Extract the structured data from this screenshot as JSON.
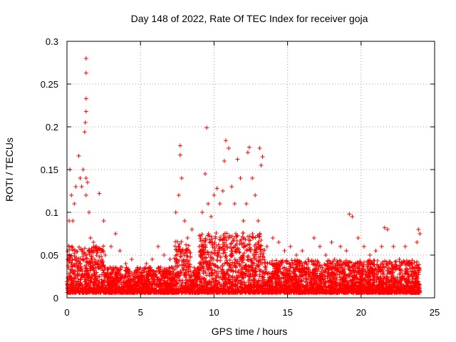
{
  "chart_data": {
    "type": "scatter",
    "title": "Day 148 of 2022, Rate Of TEC Index for receiver goja",
    "xlabel": "GPS time / hours",
    "ylabel": "ROTI / TECUs",
    "xlim": [
      0,
      25
    ],
    "ylim": [
      0,
      0.3
    ],
    "x_ticks": [
      0,
      5,
      10,
      15,
      20,
      25
    ],
    "y_ticks": [
      0,
      0.05,
      0.1,
      0.15,
      0.2,
      0.25,
      0.3
    ],
    "x_tick_labels": [
      "0",
      "5",
      "10",
      "15",
      "20",
      "25"
    ],
    "y_tick_labels": [
      "0",
      "0.05",
      "0.1",
      "0.15",
      "0.2",
      "0.25",
      "0.3"
    ],
    "grid": true,
    "marker": "plus",
    "color": "#ff0000",
    "series": [
      {
        "x": [
          0.1,
          0.15,
          0.2,
          0.3,
          0.35,
          0.4,
          0.5,
          0.6,
          0.8,
          0.9,
          1.0,
          1.1,
          1.2,
          1.25,
          1.3,
          1.3,
          1.3,
          1.3,
          1.3,
          1.3,
          1.4,
          1.5,
          1.6,
          1.8,
          2.0,
          2.2,
          2.5,
          2.6,
          3.0,
          3.3,
          3.6,
          4.0,
          4.4,
          5.0,
          5.4,
          5.8,
          6.2,
          6.6,
          7.0,
          7.4,
          7.6,
          7.7,
          7.7,
          7.8,
          8.0,
          8.2,
          8.5,
          9.0,
          9.2,
          9.4,
          9.5,
          9.6,
          9.8,
          10.0,
          10.2,
          10.4,
          10.6,
          10.7,
          10.8,
          11.0,
          11.2,
          11.4,
          11.6,
          11.8,
          12.0,
          12.2,
          12.3,
          12.4,
          12.6,
          12.8,
          13.0,
          13.1,
          13.2,
          13.3,
          13.6,
          14.0,
          14.4,
          14.8,
          15.2,
          15.6,
          16.0,
          16.4,
          16.8,
          17.2,
          17.6,
          18.0,
          18.2,
          18.6,
          19.0,
          19.2,
          19.4,
          19.8,
          20.2,
          20.6,
          21.0,
          21.4,
          21.6,
          21.8,
          22.2,
          22.6,
          23.0,
          23.4,
          23.8,
          23.9,
          24.0
        ],
        "y": [
          0.035,
          0.09,
          0.15,
          0.12,
          0.06,
          0.09,
          0.11,
          0.13,
          0.166,
          0.14,
          0.13,
          0.15,
          0.194,
          0.205,
          0.218,
          0.233,
          0.263,
          0.28,
          0.14,
          0.12,
          0.135,
          0.1,
          0.07,
          0.065,
          0.06,
          0.122,
          0.09,
          0.05,
          0.06,
          0.075,
          0.055,
          0.04,
          0.045,
          0.035,
          0.04,
          0.045,
          0.06,
          0.05,
          0.045,
          0.1,
          0.12,
          0.178,
          0.167,
          0.14,
          0.09,
          0.07,
          0.08,
          0.06,
          0.1,
          0.145,
          0.199,
          0.11,
          0.095,
          0.12,
          0.128,
          0.11,
          0.125,
          0.16,
          0.184,
          0.175,
          0.13,
          0.11,
          0.162,
          0.14,
          0.09,
          0.11,
          0.17,
          0.176,
          0.14,
          0.12,
          0.09,
          0.175,
          0.155,
          0.165,
          0.06,
          0.07,
          0.065,
          0.055,
          0.06,
          0.05,
          0.055,
          0.045,
          0.07,
          0.06,
          0.05,
          0.065,
          0.045,
          0.06,
          0.055,
          0.098,
          0.095,
          0.07,
          0.06,
          0.05,
          0.055,
          0.06,
          0.082,
          0.08,
          0.06,
          0.045,
          0.06,
          0.04,
          0.065,
          0.08,
          0.075
        ]
      }
    ]
  }
}
